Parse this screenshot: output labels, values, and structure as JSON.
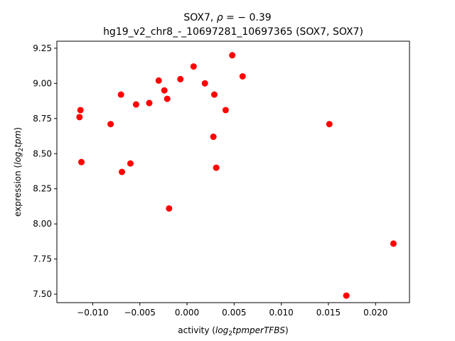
{
  "chart_data": {
    "type": "scatter",
    "title": "SOX7, ρ = − 0.39",
    "title_prefix": "SOX7, ",
    "title_rho_symbol": "ρ",
    "title_equals_value": " = − 0.39",
    "subtitle": "hg19_v2_chr8_-_10697281_10697365 (SOX7, SOX7)",
    "xlabel": "activity (log2tpmperTFBS)",
    "xlabel_prefix": "activity (",
    "xlabel_math_1": "log",
    "xlabel_math_sub": "2",
    "xlabel_math_2": "tpmperTFBS",
    "xlabel_suffix": ")",
    "ylabel": "expression (log2tpm)",
    "ylabel_prefix": "expression (",
    "ylabel_math_1": "log",
    "ylabel_math_sub": "2",
    "ylabel_math_2": "tpm",
    "ylabel_suffix": ")",
    "xlim": [
      -0.0138,
      0.0236
    ],
    "ylim": [
      7.44,
      9.3
    ],
    "xticks": [
      -0.01,
      -0.005,
      0.0,
      0.005,
      0.01,
      0.015,
      0.02
    ],
    "xtick_labels": [
      "−0.010",
      "−0.005",
      "0.000",
      "0.005",
      "0.010",
      "0.015",
      "0.020"
    ],
    "yticks": [
      7.5,
      7.75,
      8.0,
      8.25,
      8.5,
      8.75,
      9.0,
      9.25
    ],
    "ytick_labels": [
      "7.50",
      "7.75",
      "8.00",
      "8.25",
      "8.50",
      "8.75",
      "9.00",
      "9.25"
    ],
    "grid": false,
    "marker_color": "#ff0000",
    "points": [
      {
        "x": -0.0114,
        "y": 8.76
      },
      {
        "x": -0.0113,
        "y": 8.81
      },
      {
        "x": -0.0112,
        "y": 8.44
      },
      {
        "x": -0.0081,
        "y": 8.71
      },
      {
        "x": -0.007,
        "y": 8.92
      },
      {
        "x": -0.0069,
        "y": 8.37
      },
      {
        "x": -0.006,
        "y": 8.43
      },
      {
        "x": -0.0054,
        "y": 8.85
      },
      {
        "x": -0.004,
        "y": 8.86
      },
      {
        "x": -0.003,
        "y": 9.02
      },
      {
        "x": -0.0024,
        "y": 8.95
      },
      {
        "x": -0.0021,
        "y": 8.89
      },
      {
        "x": -0.0019,
        "y": 8.11
      },
      {
        "x": -0.0007,
        "y": 9.03
      },
      {
        "x": 0.0007,
        "y": 9.12
      },
      {
        "x": 0.0019,
        "y": 9.0
      },
      {
        "x": 0.0028,
        "y": 8.62
      },
      {
        "x": 0.0029,
        "y": 8.92
      },
      {
        "x": 0.0031,
        "y": 8.4
      },
      {
        "x": 0.0041,
        "y": 8.81
      },
      {
        "x": 0.0048,
        "y": 9.2
      },
      {
        "x": 0.0059,
        "y": 9.05
      },
      {
        "x": 0.0151,
        "y": 8.71
      },
      {
        "x": 0.0169,
        "y": 7.49
      },
      {
        "x": 0.0219,
        "y": 7.86
      }
    ]
  }
}
